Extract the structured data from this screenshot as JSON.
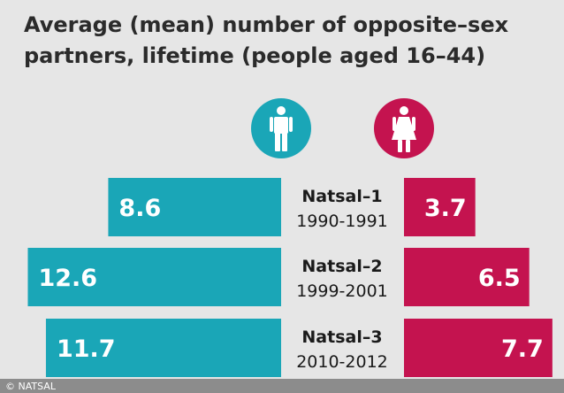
{
  "chart_data": {
    "type": "bar",
    "title_lines": [
      "Average (mean) number of opposite–sex",
      "partners, lifetime (people aged 16–44)"
    ],
    "categories": [
      {
        "survey": "Natsal–1",
        "period": "1990-1991"
      },
      {
        "survey": "Natsal–2",
        "period": "1999-2001"
      },
      {
        "survey": "Natsal–3",
        "period": "2010-2012"
      }
    ],
    "series": [
      {
        "values": [
          8.6,
          12.6,
          11.7
        ],
        "value_labels": [
          "8.6",
          "12.6",
          "11.7"
        ],
        "color": "#1aa6b7",
        "icon": "male-icon",
        "direction": "left"
      },
      {
        "values": [
          3.7,
          6.5,
          7.7
        ],
        "value_labels": [
          "3.7",
          "6.5",
          "7.7"
        ],
        "color": "#c4134f",
        "icon": "female-icon",
        "direction": "right"
      }
    ]
  },
  "credit": "© NATSAL"
}
